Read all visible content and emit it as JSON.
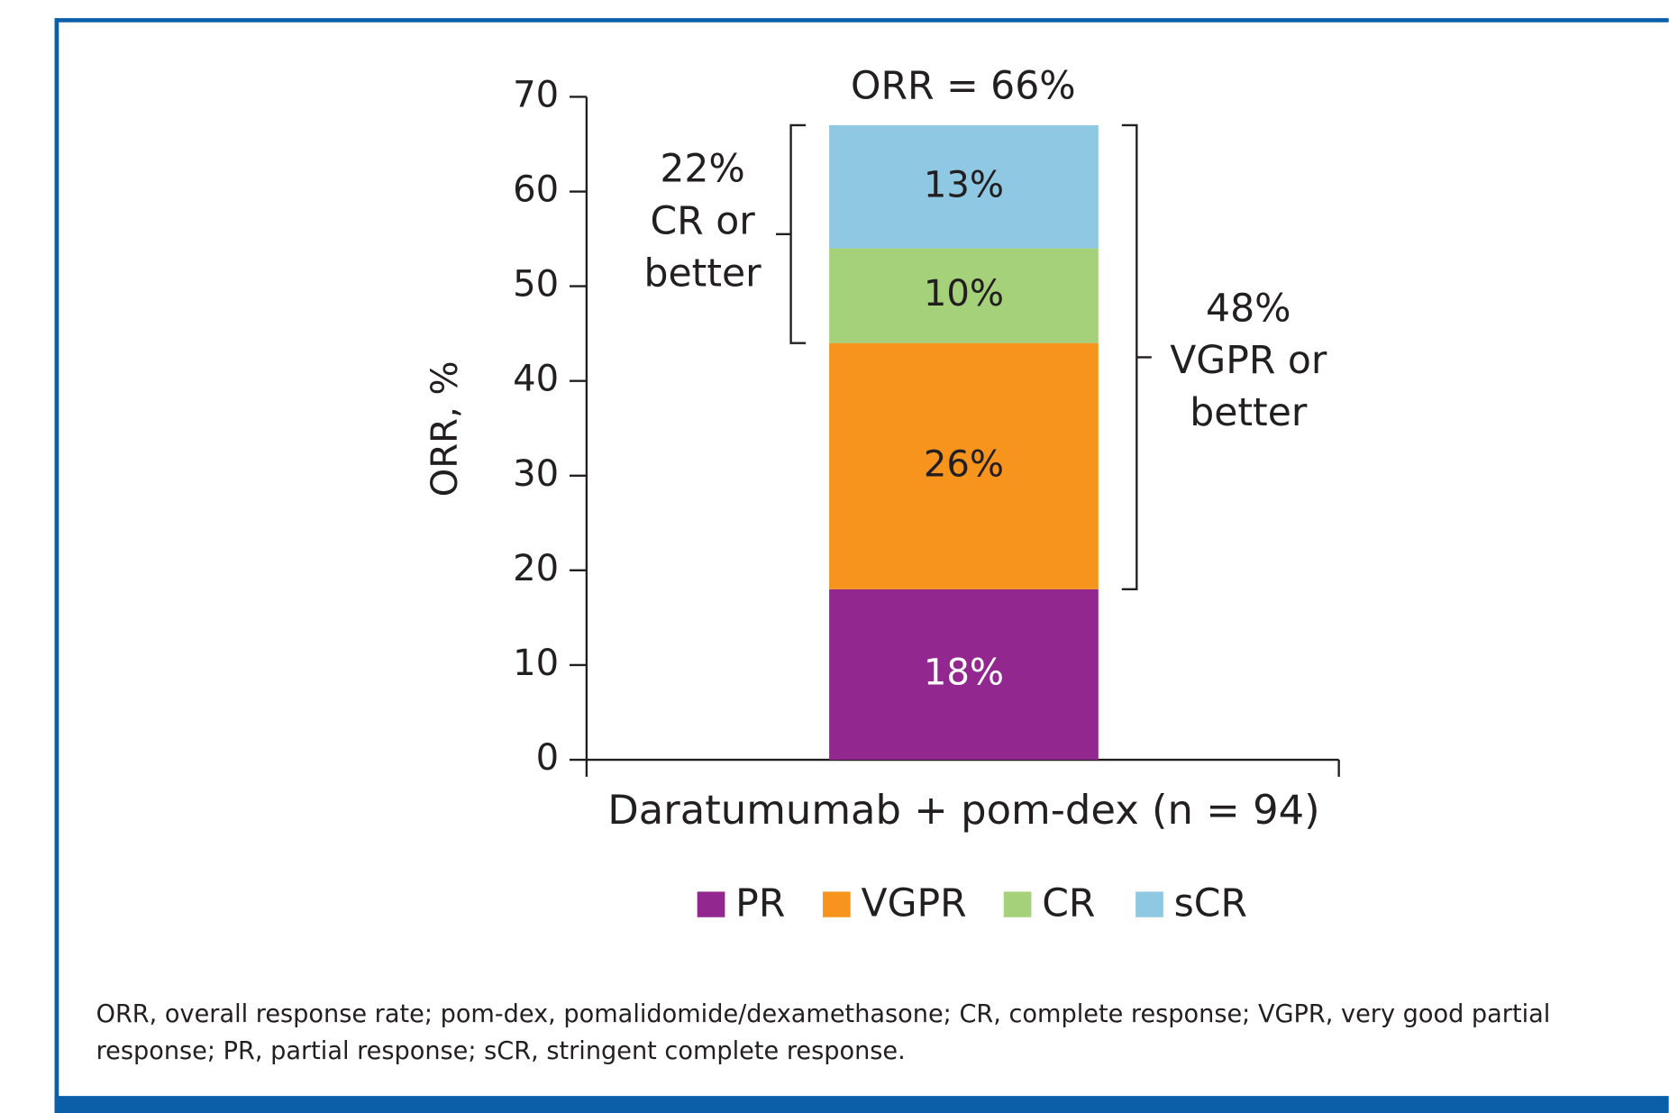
{
  "chart_data": {
    "type": "bar",
    "stacked": true,
    "categories": [
      "Daratumumab + pom-dex (n = 94)"
    ],
    "series": [
      {
        "name": "PR",
        "color": "#92278f",
        "values": [
          18
        ],
        "value_labels": [
          "18%"
        ]
      },
      {
        "name": "VGPR",
        "color": "#f7941d",
        "values": [
          26
        ],
        "value_labels": [
          "26%"
        ]
      },
      {
        "name": "CR",
        "color": "#a6d17b",
        "values": [
          10
        ],
        "value_labels": [
          "10%"
        ]
      },
      {
        "name": "sCR",
        "color": "#8ec8e3",
        "values": [
          13
        ],
        "value_labels": [
          "13%"
        ]
      }
    ],
    "ylabel": "ORR, %",
    "ylim": [
      0,
      70
    ],
    "yticks": [
      0,
      10,
      20,
      30,
      40,
      50,
      60,
      70
    ],
    "annotations": [
      {
        "lines": [
          "ORR = 66%"
        ]
      },
      {
        "lines": [
          "22%",
          "CR or",
          "better"
        ]
      },
      {
        "lines": [
          "48%",
          "VGPR or",
          "better"
        ]
      }
    ],
    "legend": "bottom"
  },
  "footnote": [
    "ORR, overall response rate; pom-dex, pomalidomide/dexamethasone; CR, complete response; VGPR, very good partial",
    "response; PR, partial response; sCR, stringent complete response."
  ]
}
